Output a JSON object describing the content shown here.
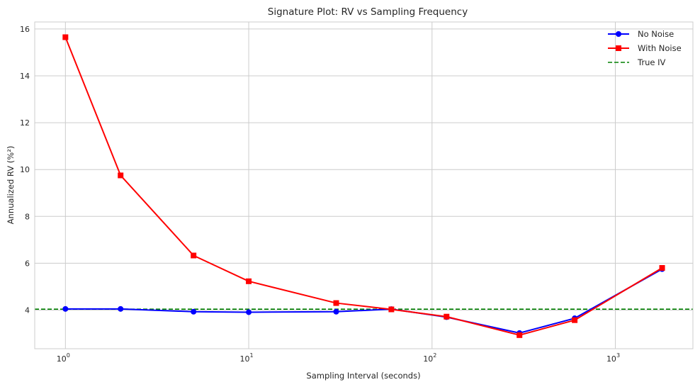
{
  "chart_data": {
    "type": "line",
    "title": "Signature Plot: RV vs Sampling Frequency",
    "xlabel": "Sampling Interval (seconds)",
    "ylabel": "Annualized RV (%²)",
    "xscale": "log",
    "xlim": [
      0.68,
      2650
    ],
    "ylim": [
      2.35,
      16.3
    ],
    "x_ticks": [
      {
        "value": 1,
        "base": "10",
        "exp": "0"
      },
      {
        "value": 10,
        "base": "10",
        "exp": "1"
      },
      {
        "value": 100,
        "base": "10",
        "exp": "2"
      },
      {
        "value": 1000,
        "base": "10",
        "exp": "3"
      }
    ],
    "y_ticks": [
      4,
      6,
      8,
      10,
      12,
      14,
      16
    ],
    "grid": true,
    "legend_position": "top-right",
    "x": [
      1,
      2,
      5,
      10,
      30,
      60,
      120,
      300,
      600,
      1800
    ],
    "series": [
      {
        "name": "No Noise",
        "color": "#0000ff",
        "marker": "circle",
        "values": [
          4.05,
          4.05,
          3.93,
          3.91,
          3.93,
          4.04,
          3.7,
          3.02,
          3.65,
          5.75
        ]
      },
      {
        "name": "With Noise",
        "color": "#ff0000",
        "marker": "square",
        "values": [
          15.65,
          9.75,
          6.33,
          5.23,
          4.3,
          4.03,
          3.72,
          2.93,
          3.57,
          5.8
        ]
      }
    ],
    "hlines": [
      {
        "name": "True IV",
        "color": "#008000",
        "style": "dashed",
        "value": 4.04
      }
    ]
  }
}
